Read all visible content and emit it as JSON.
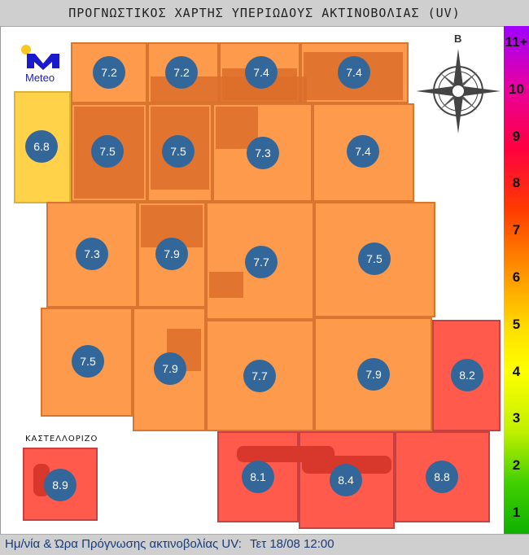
{
  "title": "ΠΡΟΓΝΩΣΤΙΚΟΣ ΧΑΡΤΗΣ ΥΠΕΡΙΩΔΟΥΣ ΑΚΤΙΝΟΒΟΛΙΑΣ (UV)",
  "logo": {
    "text": "Meteo",
    "brand_color": "#1a1acc"
  },
  "compass": {
    "north_label": "Β"
  },
  "inset_label": "ΚΑΣΤΕΛΛΟΡΙΖΟ",
  "colors": {
    "level_6_7": "#fd9a4c",
    "level_8_10": "#ff5a4c",
    "level_5_6": "#ffd24a",
    "marker": "#336699"
  },
  "tiles": [
    {
      "value": "7.2",
      "level": "high"
    },
    {
      "value": "7.2",
      "level": "high"
    },
    {
      "value": "7.4",
      "level": "high"
    },
    {
      "value": "7.4",
      "level": "high"
    },
    {
      "value": "6.8",
      "level": "moderate"
    },
    {
      "value": "7.5",
      "level": "high"
    },
    {
      "value": "7.5",
      "level": "high"
    },
    {
      "value": "7.3",
      "level": "high"
    },
    {
      "value": "7.4",
      "level": "high"
    },
    {
      "value": "7.3",
      "level": "high"
    },
    {
      "value": "7.9",
      "level": "high"
    },
    {
      "value": "7.7",
      "level": "high"
    },
    {
      "value": "7.5",
      "level": "high"
    },
    {
      "value": "7.5",
      "level": "high"
    },
    {
      "value": "7.9",
      "level": "high"
    },
    {
      "value": "7.7",
      "level": "high"
    },
    {
      "value": "7.9",
      "level": "high"
    },
    {
      "value": "8.2",
      "level": "very-high"
    },
    {
      "value": "8.1",
      "level": "very-high"
    },
    {
      "value": "8.4",
      "level": "very-high"
    },
    {
      "value": "8.8",
      "level": "very-high"
    },
    {
      "value": "8.9",
      "level": "very-high"
    }
  ],
  "scale": [
    "11+",
    "10",
    "9",
    "8",
    "7",
    "6",
    "5",
    "4",
    "3",
    "2",
    "1"
  ],
  "footer": {
    "label": "Ημ/νία & Ώρα Πρόγνωσης ακτινοβολίας UV:",
    "value": "Τετ 18/08 12:00"
  }
}
